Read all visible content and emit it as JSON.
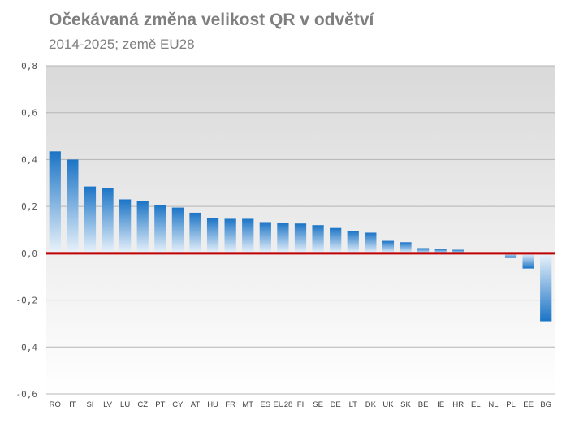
{
  "header": {
    "title": "Očekávaná změna velikost QR v odvětví",
    "subtitle": "2014-2025; země EU28"
  },
  "colors": {
    "bar": "#1f78c8",
    "zero_line": "#c00000",
    "plot_bg_top": "#dcdcdc",
    "plot_bg_bottom": "#ffffff",
    "grid": "#b5b5b5"
  },
  "chart_data": {
    "type": "bar",
    "title": "Očekávaná změna velikost QR v odvětví",
    "subtitle": "2014-2025; země EU28",
    "ylim": [
      -0.6,
      0.8
    ],
    "y_ticks": [
      "0,8",
      "0,6",
      "0,4",
      "0,2",
      "0,0",
      "-0,2",
      "-0,4",
      "-0,6"
    ],
    "y_tick_values": [
      0.8,
      0.6,
      0.4,
      0.2,
      0.0,
      -0.2,
      -0.4,
      -0.6
    ],
    "grid": true,
    "categories": [
      "RO",
      "IT",
      "SI",
      "LV",
      "LU",
      "CZ",
      "PT",
      "CY",
      "AT",
      "HU",
      "FR",
      "MT",
      "ES",
      "EU28",
      "FI",
      "SE",
      "DE",
      "LT",
      "DK",
      "UK",
      "SK",
      "BE",
      "IE",
      "HR",
      "EL",
      "NL",
      "PL",
      "EE",
      "BG"
    ],
    "values": [
      0.435,
      0.4,
      0.285,
      0.28,
      0.23,
      0.222,
      0.207,
      0.195,
      0.173,
      0.15,
      0.147,
      0.147,
      0.133,
      0.13,
      0.127,
      0.12,
      0.108,
      0.095,
      0.088,
      0.053,
      0.047,
      0.022,
      0.018,
      0.015,
      0.0,
      0.0,
      -0.02,
      -0.065,
      -0.29
    ]
  }
}
